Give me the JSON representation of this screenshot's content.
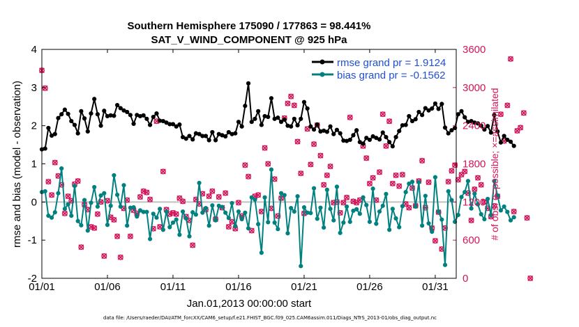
{
  "chart_data": {
    "type": "line",
    "title_line1": "Southern Hemisphere 175090 / 177863 = 98.441%",
    "title_line2": "SAT_V_WIND_COMPONENT @ 925 hPa",
    "xlabel": "Jan.01,2013 00:00:00 start",
    "ylabel": "rmse and bias (model - observation)",
    "y2label": "# of obs: o=possible; ×=assimilated",
    "footnote": "data file: /Users/raeder/DAI/ATM_forcXX/CAM6_setup/f.e21.FHIST_BGC.f09_025.CAM6assim.011/Diags_NTrS_2013-01/obs_diag_output.nc",
    "xlim": [
      0,
      31.6
    ],
    "ylim": [
      -2,
      4
    ],
    "y2lim": [
      0,
      3600
    ],
    "x_ticks": [
      0,
      5,
      10,
      15,
      20,
      25,
      30
    ],
    "x_tick_labels": [
      "01/01",
      "01/06",
      "01/11",
      "01/16",
      "01/21",
      "01/26",
      "01/31"
    ],
    "y_ticks": [
      -2,
      -1,
      0,
      1,
      2,
      3,
      4
    ],
    "y_tick_labels": [
      "-2",
      "-1",
      "0",
      "1",
      "2",
      "3",
      "4"
    ],
    "y2_ticks": [
      0,
      600,
      1200,
      1800,
      2400,
      3000,
      3600
    ],
    "y2_tick_labels": [
      "0",
      "600",
      "1200",
      "1800",
      "2400",
      "3000",
      "3600"
    ],
    "colors": {
      "rmse": "#000000",
      "bias": "#00807f",
      "obs": "#d4145a",
      "legend_text": "#1f4fd6",
      "zero_line": "#c0c0c0"
    },
    "legend": [
      "rmse grand pr = 1.9124",
      "bias grand pr = -0.1562"
    ],
    "legend_position": "top-right",
    "series": [
      {
        "name": "rmse",
        "x_start": 0,
        "x_step": 0.25,
        "values": [
          1.38,
          1.4,
          1.94,
          1.74,
          1.78,
          2.2,
          2.3,
          2.42,
          2.31,
          2.12,
          2.02,
          1.8,
          2.38,
          2.19,
          1.85,
          2.32,
          2.7,
          2.3,
          2.0,
          2.39,
          2.25,
          2.27,
          2.26,
          2.54,
          2.46,
          2.4,
          2.36,
          2.28,
          2.05,
          2.28,
          2.25,
          2.27,
          2.18,
          2.02,
          2.23,
          2.32,
          2.13,
          2.12,
          2.08,
          2.04,
          2.04,
          1.98,
          2.03,
          1.7,
          1.66,
          1.73,
          1.64,
          1.8,
          1.78,
          1.73,
          1.73,
          1.62,
          1.83,
          1.62,
          1.78,
          1.75,
          1.72,
          1.83,
          1.78,
          1.8,
          2.1,
          1.98,
          2.52,
          3.11,
          2.1,
          2.18,
          2.38,
          2.02,
          2.25,
          2.23,
          2.72,
          2.18,
          2.21,
          2.1,
          2.16,
          2.0,
          1.98,
          2.18,
          2.01,
          2.18,
          2.62,
          2.45,
          1.98,
          1.9,
          2.03,
          1.85,
          1.87,
          1.84,
          1.98,
          1.78,
          1.89,
          1.8,
          1.61,
          1.6,
          1.63,
          1.75,
          1.88,
          1.57,
          1.53,
          1.68,
          1.63,
          1.72,
          1.68,
          1.64,
          1.82,
          1.7,
          1.57,
          1.46,
          1.7,
          1.86,
          2.01,
          2.02,
          2.25,
          2.12,
          2.17,
          2.36,
          2.28,
          2.46,
          2.4,
          2.45,
          2.58,
          2.44,
          2.57,
          1.95,
          1.8,
          1.88,
          1.94,
          2.3,
          2.38,
          2.22,
          2.1,
          2.12,
          2.08,
          2.06,
          2.0,
          1.9,
          1.99,
          1.82,
          2.28,
          1.85,
          1.56,
          1.73,
          1.63,
          1.58,
          1.47
        ]
      },
      {
        "name": "bias",
        "x_start": 0,
        "x_step": 0.25,
        "values": [
          0.26,
          0.28,
          -0.36,
          -0.41,
          -0.27,
          0.23,
          0.88,
          -0.18,
          -0.06,
          -0.36,
          0.42,
          -0.5,
          -0.61,
          0.05,
          -0.75,
          -0.02,
          0.39,
          -0.12,
          0.17,
          0.23,
          -0.6,
          -0.1,
          0.7,
          0.19,
          -0.12,
          0.44,
          -0.62,
          -0.15,
          -0.14,
          -0.38,
          -0.22,
          -0.26,
          -0.26,
          -0.97,
          -0.31,
          -0.41,
          -0.18,
          -0.73,
          -0.25,
          -0.66,
          -0.54,
          -0.46,
          -0.86,
          -0.25,
          -0.43,
          -0.9,
          -0.27,
          -0.33,
          0.5,
          -0.28,
          -0.16,
          -0.62,
          -0.09,
          -0.48,
          -0.1,
          -0.13,
          -0.28,
          -0.42,
          -0.03,
          -0.63,
          -0.25,
          -0.45,
          -0.28,
          -0.69,
          0.12,
          0.06,
          -0.58,
          -1.33,
          0.12,
          -0.53,
          0.85,
          -0.54,
          -0.71,
          0.23,
          0.18,
          -0.82,
          -0.16,
          -0.25,
          0.15,
          -1.68,
          -0.14,
          -0.28,
          -0.29,
          0.36,
          -0.44,
          -0.15,
          -0.67,
          0.32,
          -0.18,
          -0.48,
          0.4,
          -0.81,
          -0.54,
          -0.12,
          -0.52,
          -0.23,
          -0.19,
          -0.31,
          0.12,
          -0.08,
          -0.52,
          0.35,
          -0.57,
          -0.25,
          -0.1,
          0.21,
          -0.73,
          -0.18,
          -0.43,
          -0.66,
          -0.11,
          0.26,
          0.48,
          0.53,
          -0.12,
          0.52,
          -0.62,
          0.16,
          -0.56,
          -0.78,
          0.65,
          -0.25,
          -0.46,
          -1.65,
          0.28,
          0.05,
          -0.52,
          -0.34,
          0.13,
          0.26,
          0.55,
          -0.17,
          0.22,
          -0.06,
          -0.32,
          -0.45,
          0.08,
          -0.34,
          0.55,
          0.17,
          -0.22,
          -0.12,
          -0.26,
          -0.48,
          -0.4
        ]
      },
      {
        "name": "obs_count",
        "x_start": 0,
        "x_step": 0.25,
        "values": [
          3270,
          2990,
          1520,
          1310,
          1820,
          1610,
          1470,
          1020,
          1290,
          1220,
          1480,
          1530,
          490,
          1160,
          1080,
          810,
          790,
          1010,
          1200,
          350,
          1220,
          960,
          920,
          660,
          330,
          1100,
          1230,
          660,
          1070,
          1020,
          1280,
          1370,
          1350,
          1240,
          780,
          2470,
          810,
          1680,
          1080,
          1010,
          1030,
          1010,
          1260,
          1210,
          970,
          910,
          520,
          1240,
          1170,
          1330,
          1080,
          1290,
          1370,
          930,
          1280,
          1110,
          1340,
          810,
          890,
          780,
          1190,
          980,
          1780,
          1600,
          750,
          1290,
          1310,
          1050,
          2050,
          1800,
          1100,
          1560,
          980,
          1260,
          2520,
          2750,
          2860,
          2720,
          2150,
          1650,
          1020,
          2350,
          1790,
          2110,
          2410,
          1930,
          1470,
          1620,
          1760,
          1190,
          1200,
          1030,
          1190,
          1270,
          2530,
          1210,
          1190,
          1230,
          2080,
          1890,
          1490,
          1580,
          1230,
          1670,
          2580,
          2080,
          2470,
          1490,
          1620,
          1450,
          1630,
          1170,
          1110,
          1420,
          1140,
          1530,
          1850,
          1110,
          1510,
          790,
          590,
          1040,
          460,
          790,
          1520,
          1690,
          1780,
          1550,
          1630,
          1680,
          1340,
          910,
          1400,
          1580,
          1470,
          1200,
          1100,
          970,
          1140,
          1290,
          2580,
          2160,
          2720,
          3450,
          1050,
          2320,
          2370,
          2600,
          950,
          0
        ]
      }
    ]
  }
}
